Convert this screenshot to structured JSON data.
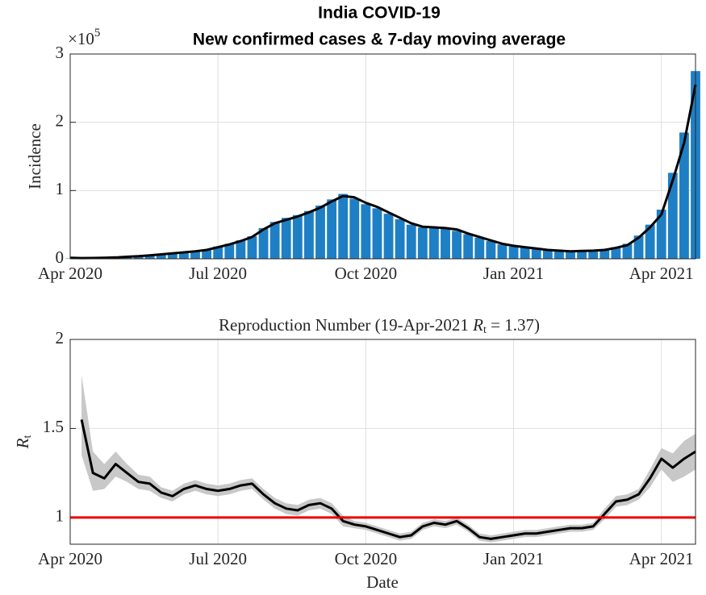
{
  "chart_data": [
    {
      "type": "bar",
      "title": [
        "India COVID-19",
        "New confirmed cases & 7-day moving average"
      ],
      "ylabel": "Incidence",
      "exponent_base": "×10",
      "exponent": "5",
      "categories": [
        "Apr 2020",
        null,
        null,
        null,
        null,
        null,
        null,
        null,
        null,
        null,
        null,
        null,
        null,
        "Jul 2020",
        null,
        null,
        null,
        null,
        null,
        null,
        null,
        null,
        null,
        null,
        null,
        null,
        "Oct 2020",
        null,
        null,
        null,
        null,
        null,
        null,
        null,
        null,
        null,
        null,
        null,
        null,
        "Jan 2021",
        null,
        null,
        null,
        null,
        null,
        null,
        null,
        null,
        null,
        null,
        null,
        null,
        "Apr 2021",
        null,
        null,
        null
      ],
      "series": [
        {
          "type": "bar",
          "color": "#1f7fc4",
          "values": [
            500,
            1200,
            1400,
            1700,
            2300,
            3200,
            4000,
            5300,
            6800,
            8500,
            10000,
            11500,
            13500,
            18000,
            22000,
            27000,
            33000,
            45000,
            54000,
            60000,
            64000,
            70000,
            78000,
            87000,
            95000,
            88000,
            80000,
            74000,
            66000,
            58000,
            50000,
            46000,
            47000,
            44000,
            41000,
            36000,
            31000,
            26000,
            21000,
            18000,
            16000,
            14500,
            12500,
            11500,
            10500,
            12000,
            13000,
            14000,
            17000,
            22000,
            34000,
            50000,
            72000,
            126000,
            185000,
            275000
          ]
        },
        {
          "type": "line",
          "color": "#000000",
          "values": [
            1500,
            1000,
            1200,
            1500,
            2000,
            3000,
            3800,
            5000,
            6500,
            8000,
            9500,
            11000,
            13000,
            17000,
            21000,
            26000,
            32000,
            43000,
            52000,
            57000,
            62000,
            68000,
            75000,
            84000,
            92000,
            90000,
            82000,
            76000,
            68000,
            60000,
            52000,
            47000,
            46000,
            45000,
            43000,
            37000,
            32000,
            27000,
            22000,
            19000,
            17000,
            15000,
            13000,
            12000,
            11000,
            11500,
            12000,
            13000,
            16000,
            20000,
            31000,
            46000,
            65000,
            115000,
            170000,
            255000
          ]
        }
      ],
      "ylim": [
        0,
        300000
      ],
      "yticks": [
        0,
        {
          "value": 100000,
          "label": "1"
        },
        {
          "value": 200000,
          "label": "2"
        },
        {
          "value": 300000,
          "label": "3"
        }
      ],
      "grid": true
    },
    {
      "type": "line",
      "title": [
        "Reproduction Number (19-Apr-2021 ",
        "R",
        "t",
        " = 1.37)"
      ],
      "ylabel": [
        "R",
        "t"
      ],
      "xlabel": "Date",
      "categories": [
        "Apr 2020",
        null,
        null,
        null,
        null,
        null,
        null,
        null,
        null,
        null,
        null,
        null,
        null,
        "Jul 2020",
        null,
        null,
        null,
        null,
        null,
        null,
        null,
        null,
        null,
        null,
        null,
        null,
        "Oct 2020",
        null,
        null,
        null,
        null,
        null,
        null,
        null,
        null,
        null,
        null,
        null,
        null,
        "Jan 2021",
        null,
        null,
        null,
        null,
        null,
        null,
        null,
        null,
        null,
        null,
        null,
        null,
        "Apr 2021",
        null,
        null,
        null
      ],
      "series": [
        {
          "type": "band",
          "color": "#c8c8c8",
          "upper": [
            null,
            1.8,
            1.37,
            1.3,
            1.37,
            1.3,
            1.24,
            1.23,
            1.17,
            1.15,
            1.19,
            1.21,
            1.19,
            1.18,
            1.19,
            1.21,
            1.22,
            1.16,
            1.11,
            1.08,
            1.07,
            1.1,
            1.11,
            1.08,
            1.01,
            0.98,
            0.97,
            0.95,
            0.93,
            0.91,
            0.92,
            0.97,
            0.99,
            0.98,
            1.0,
            0.96,
            0.91,
            0.9,
            0.91,
            0.92,
            0.93,
            0.93,
            0.94,
            0.95,
            0.96,
            0.96,
            0.97,
            1.05,
            1.12,
            1.13,
            1.16,
            1.27,
            1.39,
            1.36,
            1.43,
            1.47
          ],
          "lower": [
            null,
            1.35,
            1.15,
            1.16,
            1.23,
            1.2,
            1.16,
            1.15,
            1.11,
            1.09,
            1.13,
            1.15,
            1.13,
            1.12,
            1.13,
            1.15,
            1.16,
            1.1,
            1.05,
            1.02,
            1.01,
            1.04,
            1.05,
            1.02,
            0.95,
            0.94,
            0.93,
            0.91,
            0.89,
            0.87,
            0.88,
            0.93,
            0.95,
            0.94,
            0.96,
            0.92,
            0.87,
            0.86,
            0.87,
            0.88,
            0.89,
            0.89,
            0.9,
            0.91,
            0.92,
            0.92,
            0.93,
            0.99,
            1.06,
            1.07,
            1.1,
            1.17,
            1.27,
            1.2,
            1.23,
            1.27
          ]
        },
        {
          "type": "line",
          "color": "#000000",
          "values": [
            null,
            1.55,
            1.25,
            1.22,
            1.3,
            1.25,
            1.2,
            1.19,
            1.14,
            1.12,
            1.16,
            1.18,
            1.16,
            1.15,
            1.16,
            1.18,
            1.19,
            1.13,
            1.08,
            1.05,
            1.04,
            1.07,
            1.08,
            1.05,
            0.98,
            0.96,
            0.95,
            0.93,
            0.91,
            0.89,
            0.9,
            0.95,
            0.97,
            0.96,
            0.98,
            0.94,
            0.89,
            0.88,
            0.89,
            0.9,
            0.91,
            0.91,
            0.92,
            0.93,
            0.94,
            0.94,
            0.95,
            1.02,
            1.09,
            1.1,
            1.13,
            1.22,
            1.33,
            1.28,
            1.33,
            1.37
          ]
        }
      ],
      "hline": {
        "value": 1,
        "color": "#ee0000"
      },
      "ylim": [
        0.85,
        2
      ],
      "yticks": [
        1,
        1.5,
        2
      ],
      "grid": true
    }
  ]
}
